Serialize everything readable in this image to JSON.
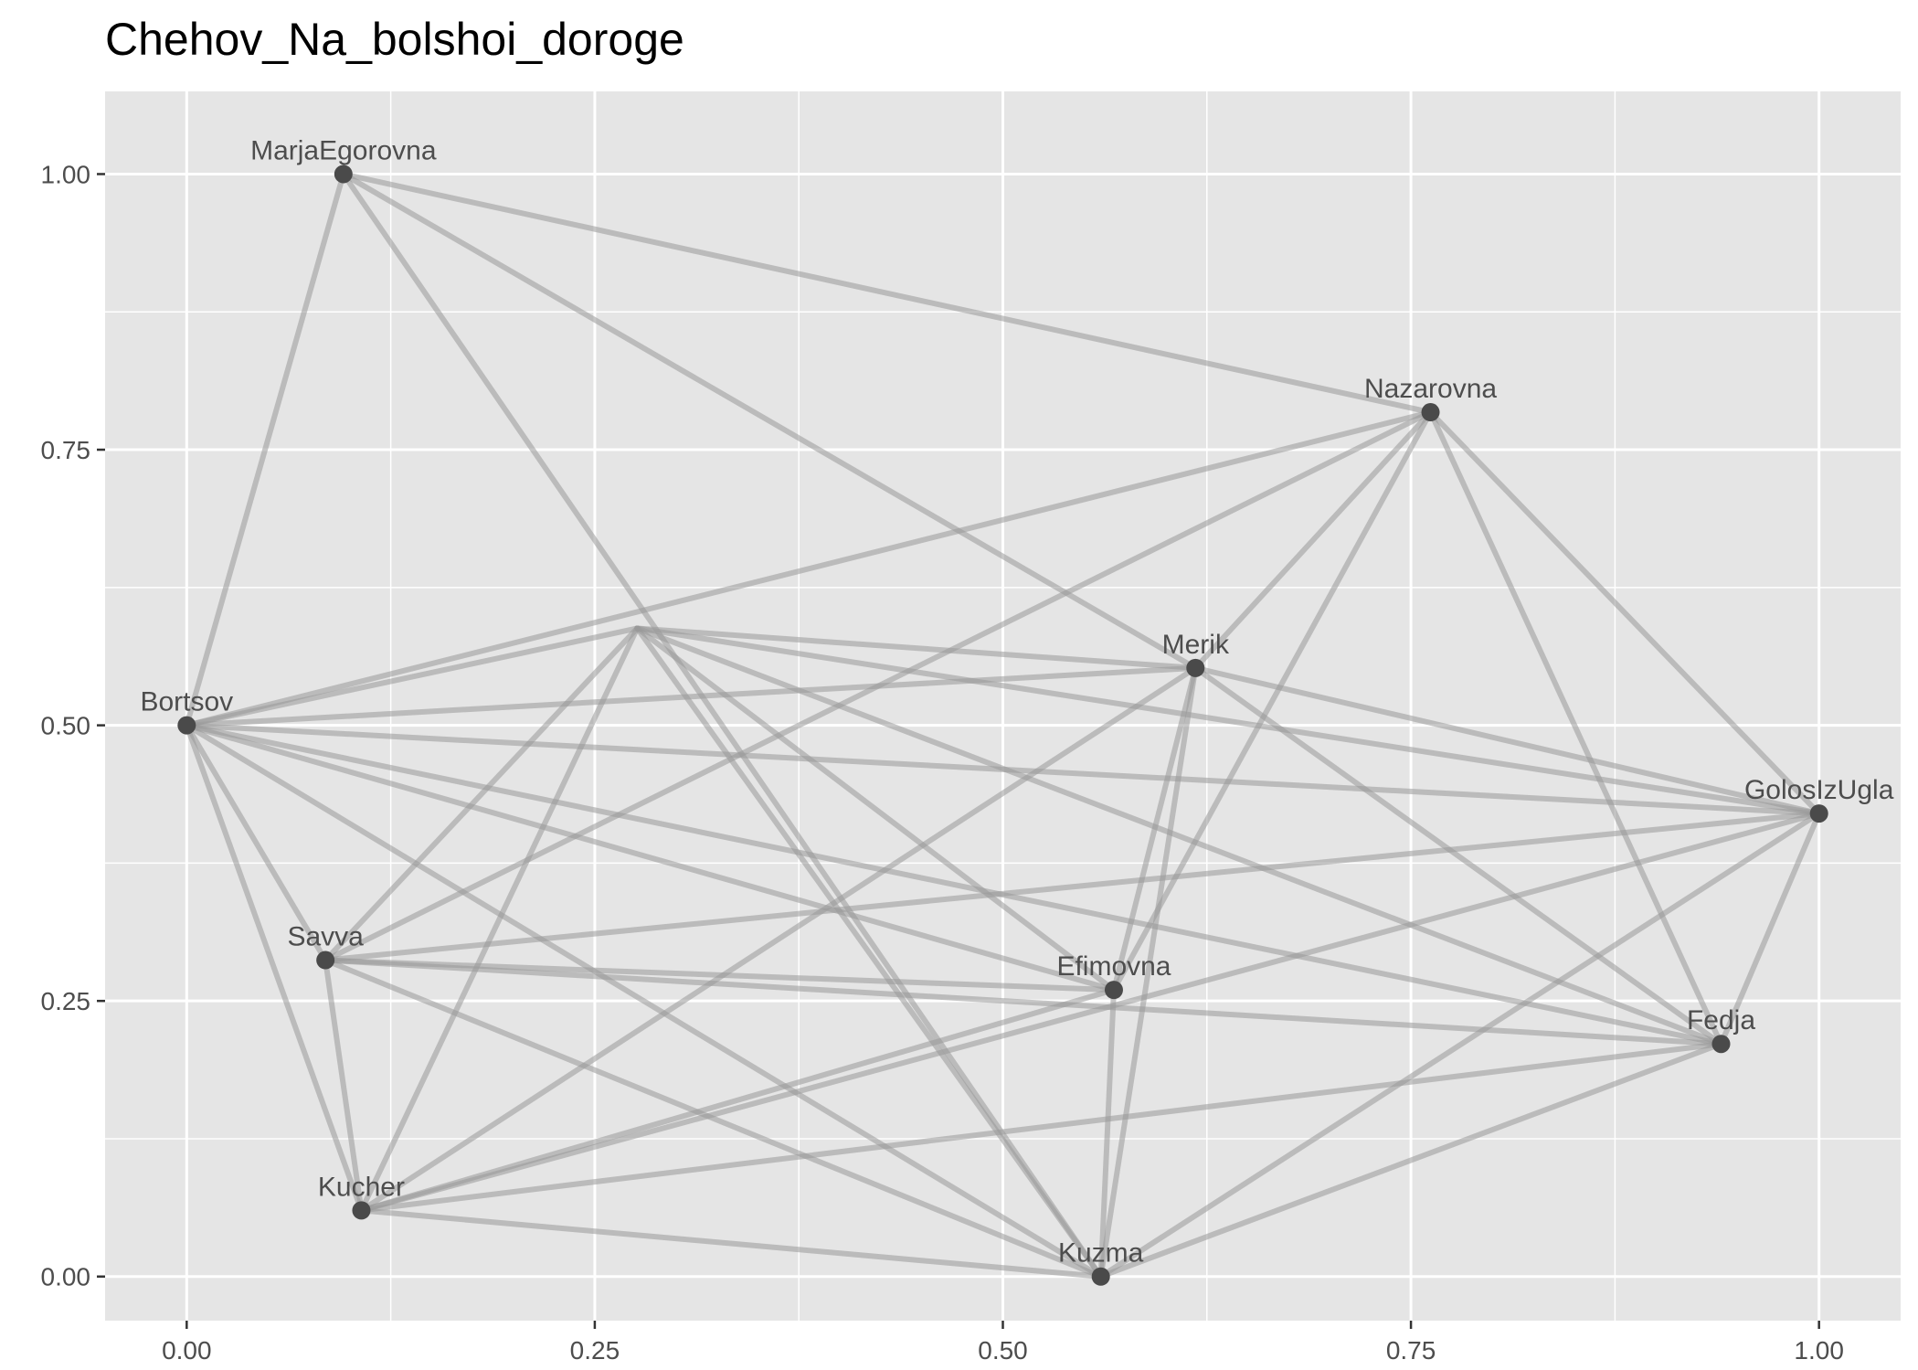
{
  "title": "Chehov_Na_bolshoi_doroge",
  "chart_data": {
    "type": "network",
    "title": "Chehov_Na_bolshoi_doroge",
    "xlabel": "",
    "ylabel": "",
    "xlim": [
      -0.05,
      1.05
    ],
    "ylim": [
      -0.04,
      1.075
    ],
    "grid": true,
    "x_ticks": [
      0.0,
      0.25,
      0.5,
      0.75,
      1.0
    ],
    "y_ticks": [
      0.0,
      0.25,
      0.5,
      0.75,
      1.0
    ],
    "x_tick_labels": [
      "0.00",
      "0.25",
      "0.50",
      "0.75",
      "1.00"
    ],
    "y_tick_labels": [
      "0.00",
      "0.25",
      "0.50",
      "0.75",
      "1.00"
    ],
    "colors": {
      "panel_background": "#e5e5e5",
      "grid": "#ffffff",
      "edge": "#999999",
      "node": "#4a4a4a",
      "label": "#4d4d4d"
    },
    "nodes": [
      {
        "id": "MarjaEgorovna",
        "label": "MarjaEgorovna",
        "x": 0.096,
        "y": 1.0
      },
      {
        "id": "Nazarovna",
        "label": "Nazarovna",
        "x": 0.762,
        "y": 0.784
      },
      {
        "id": "Merik",
        "label": "Merik",
        "x": 0.618,
        "y": 0.552
      },
      {
        "id": "Bortsov",
        "label": "Bortsov",
        "x": 0.0,
        "y": 0.5
      },
      {
        "id": "GolosIzUgla",
        "label": "GolosIzUgla",
        "x": 1.0,
        "y": 0.42
      },
      {
        "id": "Savva",
        "label": "Savva",
        "x": 0.085,
        "y": 0.287
      },
      {
        "id": "Efimovna",
        "label": "Efimovna",
        "x": 0.568,
        "y": 0.26
      },
      {
        "id": "Fedja",
        "label": "Fedja",
        "x": 0.94,
        "y": 0.211
      },
      {
        "id": "Kucher",
        "label": "Kucher",
        "x": 0.107,
        "y": 0.06
      },
      {
        "id": "Kuzma",
        "label": "Kuzma",
        "x": 0.56,
        "y": 0.0
      },
      {
        "id": "Hidden",
        "label": "",
        "x": 0.276,
        "y": 0.588
      }
    ],
    "edges": [
      [
        "MarjaEgorovna",
        "Nazarovna"
      ],
      [
        "MarjaEgorovna",
        "Merik"
      ],
      [
        "MarjaEgorovna",
        "Bortsov"
      ],
      [
        "MarjaEgorovna",
        "Kuzma"
      ],
      [
        "Nazarovna",
        "Bortsov"
      ],
      [
        "Nazarovna",
        "Merik"
      ],
      [
        "Nazarovna",
        "GolosIzUgla"
      ],
      [
        "Nazarovna",
        "Fedja"
      ],
      [
        "Nazarovna",
        "Efimovna"
      ],
      [
        "Nazarovna",
        "Savva"
      ],
      [
        "Merik",
        "Bortsov"
      ],
      [
        "Merik",
        "GolosIzUgla"
      ],
      [
        "Merik",
        "Fedja"
      ],
      [
        "Merik",
        "Efimovna"
      ],
      [
        "Merik",
        "Kuzma"
      ],
      [
        "Merik",
        "Kucher"
      ],
      [
        "Merik",
        "Hidden"
      ],
      [
        "Bortsov",
        "Hidden"
      ],
      [
        "Bortsov",
        "GolosIzUgla"
      ],
      [
        "Bortsov",
        "Savva"
      ],
      [
        "Bortsov",
        "Kucher"
      ],
      [
        "Bortsov",
        "Efimovna"
      ],
      [
        "Bortsov",
        "Fedja"
      ],
      [
        "Bortsov",
        "Kuzma"
      ],
      [
        "Hidden",
        "GolosIzUgla"
      ],
      [
        "Hidden",
        "Fedja"
      ],
      [
        "Hidden",
        "Efimovna"
      ],
      [
        "Hidden",
        "Kuzma"
      ],
      [
        "Hidden",
        "Savva"
      ],
      [
        "Hidden",
        "Kucher"
      ],
      [
        "Savva",
        "GolosIzUgla"
      ],
      [
        "Savva",
        "Efimovna"
      ],
      [
        "Savva",
        "Fedja"
      ],
      [
        "Savva",
        "Kucher"
      ],
      [
        "Savva",
        "Kuzma"
      ],
      [
        "Efimovna",
        "Kucher"
      ],
      [
        "Efimovna",
        "Kuzma"
      ],
      [
        "Kucher",
        "GolosIzUgla"
      ],
      [
        "Kucher",
        "Fedja"
      ],
      [
        "Kucher",
        "Kuzma"
      ],
      [
        "Kuzma",
        "GolosIzUgla"
      ],
      [
        "Kuzma",
        "Fedja"
      ],
      [
        "Fedja",
        "GolosIzUgla"
      ]
    ]
  }
}
